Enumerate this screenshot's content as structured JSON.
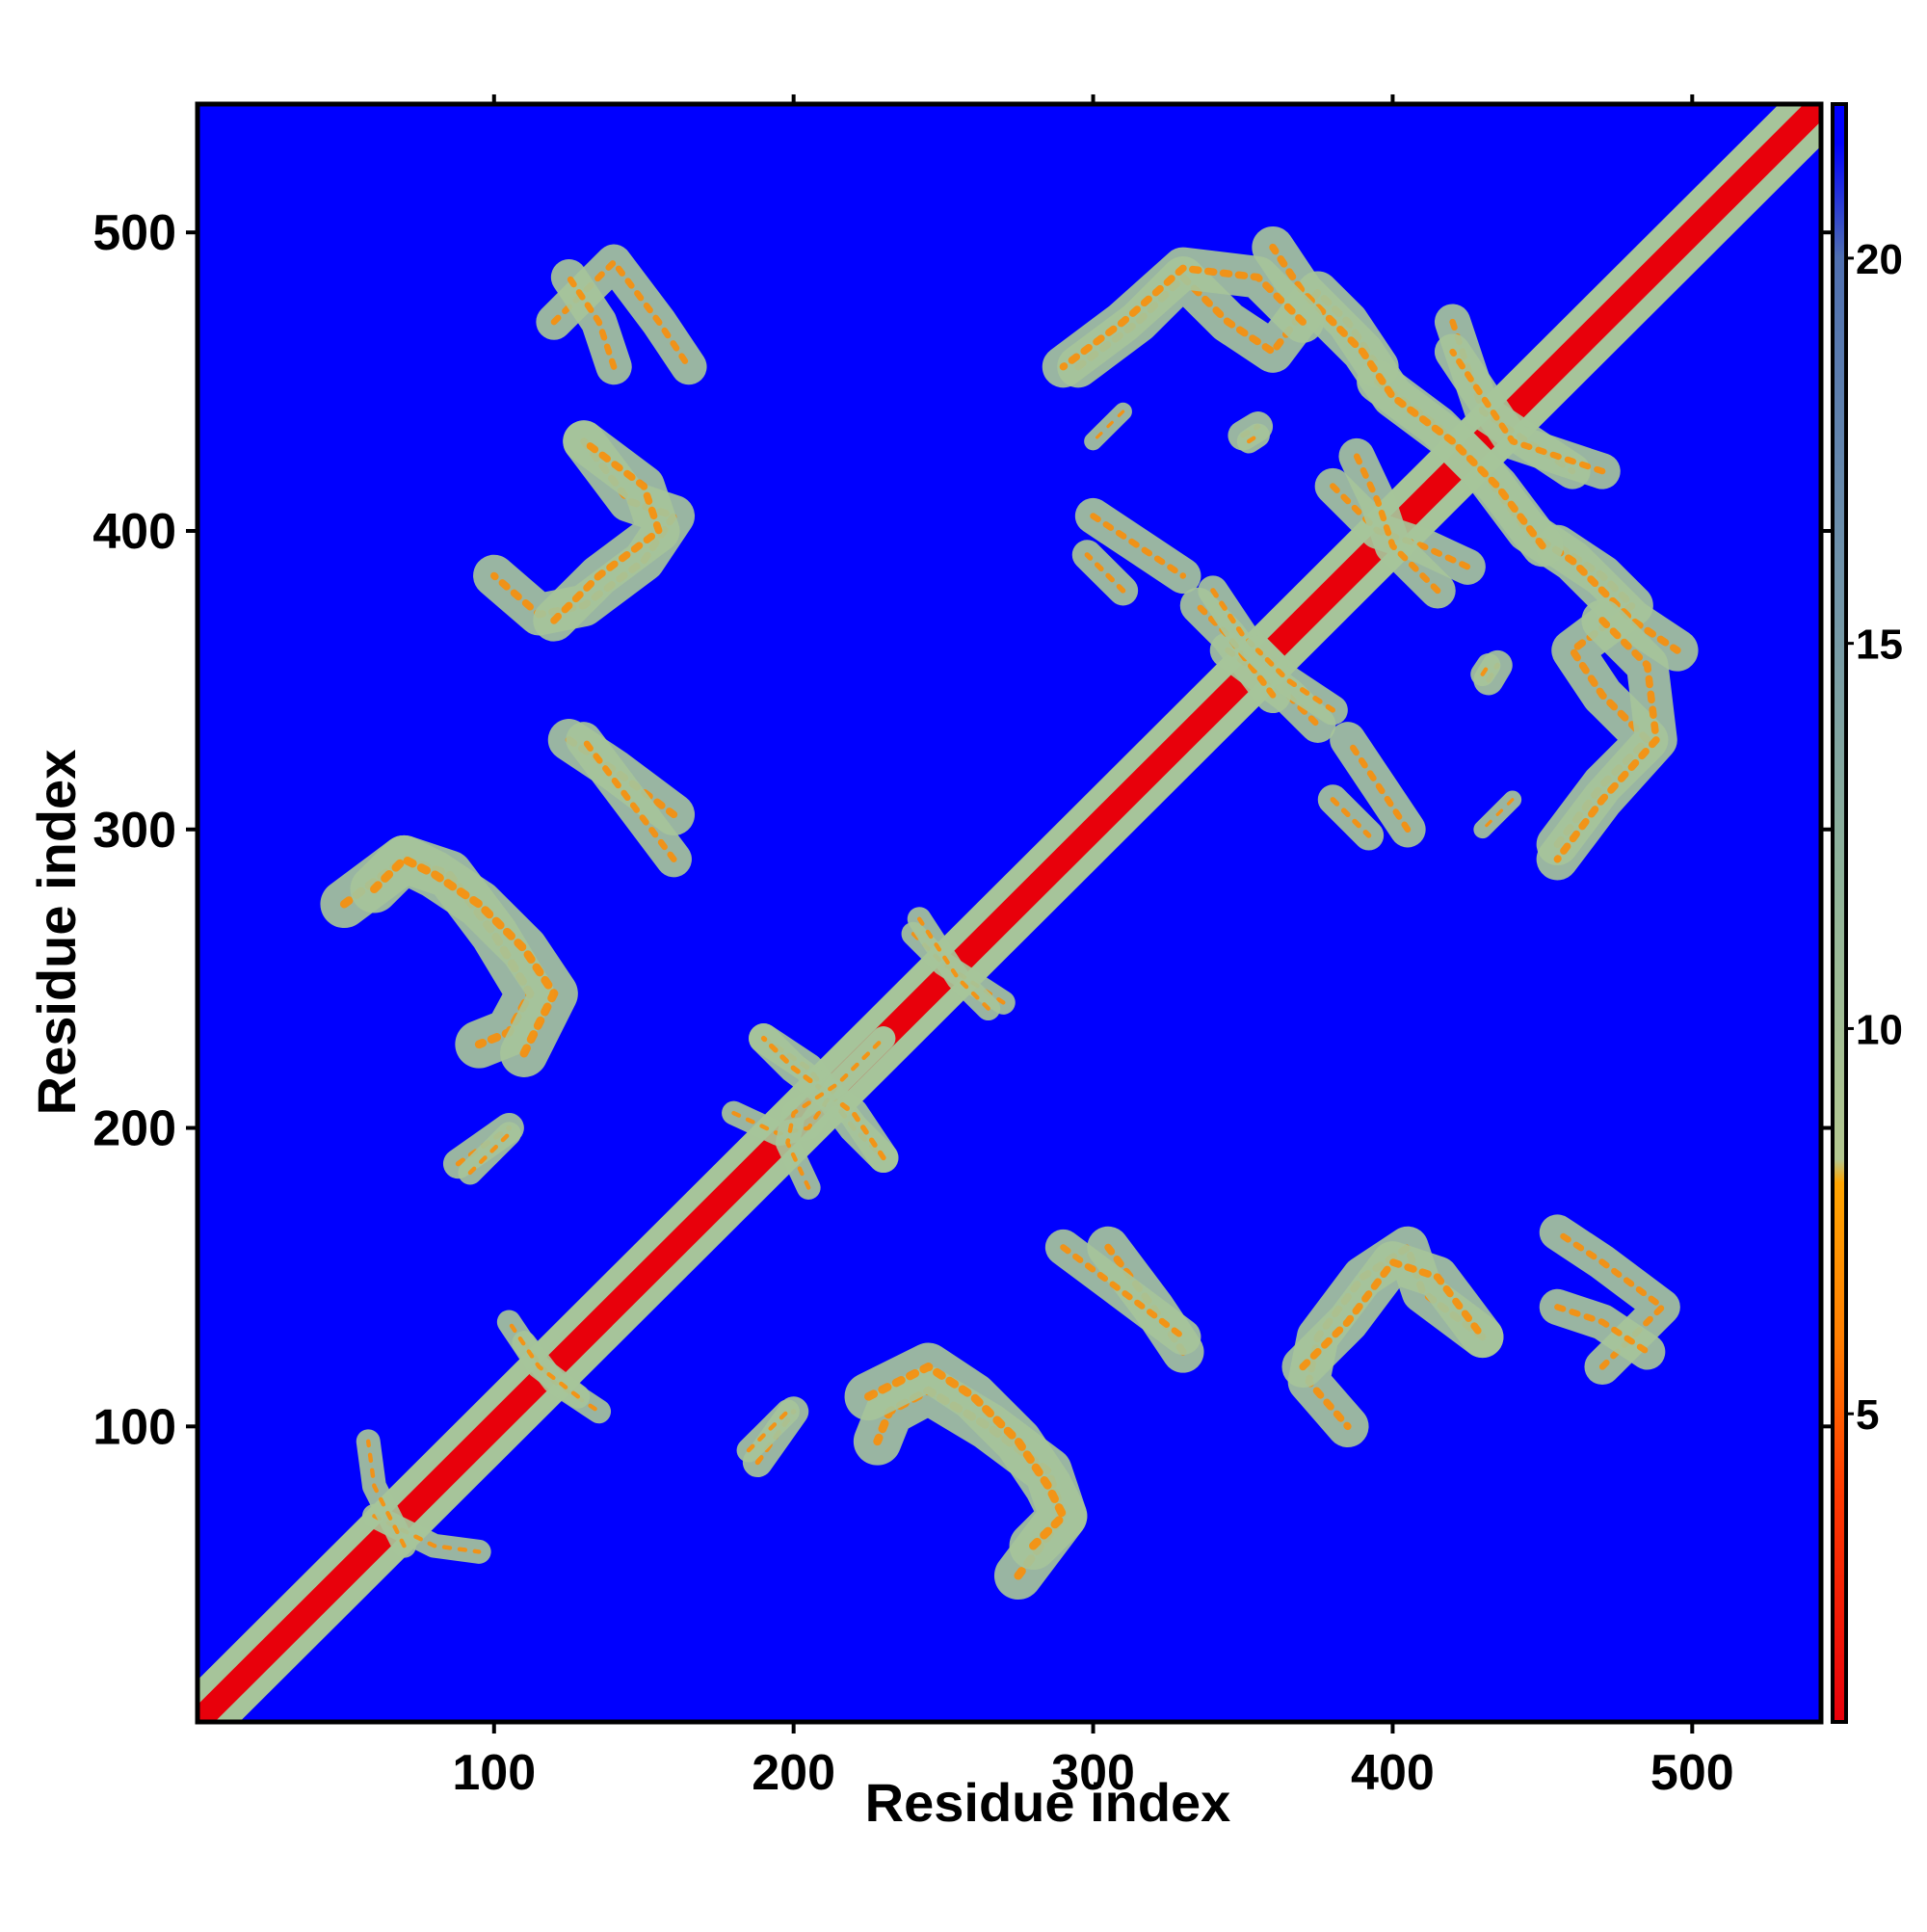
{
  "chart_data": {
    "type": "heatmap",
    "title": "",
    "xlabel": "Residue index",
    "ylabel": "Residue index",
    "xlim": [
      1,
      543
    ],
    "ylim": [
      1,
      543
    ],
    "x_ticks": [
      100,
      200,
      300,
      400,
      500
    ],
    "y_ticks": [
      100,
      200,
      300,
      400,
      500
    ],
    "x_tick_labels": [
      "100",
      "200",
      "300",
      "400",
      "500"
    ],
    "y_tick_labels": [
      "100",
      "200",
      "300",
      "400",
      "500"
    ],
    "colorbar": {
      "range": [
        1,
        22
      ],
      "ticks": [
        5,
        10,
        15,
        20
      ],
      "tick_labels": [
        "5",
        "10",
        "15",
        "20"
      ],
      "stops": [
        {
          "value": 1,
          "color": "#e8000b"
        },
        {
          "value": 4,
          "color": "#ff3a00"
        },
        {
          "value": 6,
          "color": "#ff7f00"
        },
        {
          "value": 8,
          "color": "#ffa500"
        },
        {
          "value": 8.3,
          "color": "#b4c890"
        },
        {
          "value": 12,
          "color": "#8fb39a"
        },
        {
          "value": 16,
          "color": "#6f92a9"
        },
        {
          "value": 20,
          "color": "#4f6fb0"
        },
        {
          "value": 21.5,
          "color": "#0000ff"
        }
      ]
    },
    "background_color": "#0000ff",
    "diagonal_color": "#e8000b",
    "contact_color": "#a6c49a",
    "core_color": "#ff8c00",
    "contact_segments": [
      {
        "path": [
          [
            2,
            2
          ],
          [
            543,
            543
          ]
        ],
        "width": 9
      },
      {
        "path": [
          [
            120,
            470
          ],
          [
            140,
            490
          ],
          [
            155,
            470
          ],
          [
            165,
            455
          ]
        ],
        "width": 6
      },
      {
        "path": [
          [
            130,
            430
          ],
          [
            145,
            410
          ],
          [
            160,
            405
          ],
          [
            150,
            390
          ],
          [
            130,
            375
          ],
          [
            115,
            372
          ],
          [
            100,
            385
          ]
        ],
        "width": 7
      },
      {
        "path": [
          [
            125,
            330
          ],
          [
            140,
            320
          ],
          [
            160,
            305
          ]
        ],
        "width": 7
      },
      {
        "path": [
          [
            50,
            275
          ],
          [
            70,
            290
          ],
          [
            85,
            285
          ],
          [
            100,
            265
          ],
          [
            112,
            245
          ],
          [
            105,
            232
          ],
          [
            95,
            228
          ]
        ],
        "width": 8
      },
      {
        "path": [
          [
            88,
            188
          ],
          [
            105,
            200
          ]
        ],
        "width": 5
      },
      {
        "path": [
          [
            190,
            230
          ],
          [
            205,
            220
          ],
          [
            220,
            200
          ],
          [
            230,
            190
          ]
        ],
        "width": 5
      },
      {
        "path": [
          [
            180,
            205
          ],
          [
            195,
            198
          ],
          [
            205,
            200
          ],
          [
            215,
            215
          ],
          [
            230,
            230
          ]
        ],
        "width": 4
      },
      {
        "path": [
          [
            185,
            92
          ],
          [
            198,
            105
          ]
        ],
        "width": 4
      },
      {
        "path": [
          [
            225,
            110
          ],
          [
            245,
            120
          ],
          [
            260,
            110
          ],
          [
            275,
            95
          ],
          [
            285,
            80
          ],
          [
            290,
            70
          ],
          [
            280,
            60
          ]
        ],
        "width": 8
      },
      {
        "path": [
          [
            290,
            160
          ],
          [
            310,
            145
          ],
          [
            330,
            130
          ]
        ],
        "width": 6
      },
      {
        "path": [
          [
            370,
            120
          ],
          [
            385,
            135
          ],
          [
            400,
            155
          ],
          [
            415,
            150
          ],
          [
            430,
            130
          ]
        ],
        "width": 7
      },
      {
        "path": [
          [
            455,
            140
          ],
          [
            470,
            135
          ],
          [
            485,
            125
          ]
        ],
        "width": 6
      },
      {
        "path": [
          [
            295,
            455
          ],
          [
            315,
            470
          ],
          [
            330,
            485
          ],
          [
            345,
            470
          ],
          [
            360,
            460
          ],
          [
            375,
            480
          ],
          [
            385,
            470
          ],
          [
            395,
            455
          ]
        ],
        "width": 7
      },
      {
        "path": [
          [
            300,
            405
          ],
          [
            315,
            395
          ],
          [
            330,
            385
          ]
        ],
        "width": 6
      },
      {
        "path": [
          [
            345,
            360
          ],
          [
            365,
            345
          ],
          [
            375,
            335
          ]
        ],
        "width": 6
      },
      {
        "path": [
          [
            340,
            380
          ],
          [
            350,
            365
          ],
          [
            360,
            355
          ]
        ],
        "width": 5
      },
      {
        "path": [
          [
            395,
            450
          ],
          [
            415,
            435
          ],
          [
            430,
            420
          ],
          [
            445,
            400
          ],
          [
            460,
            390
          ],
          [
            480,
            370
          ],
          [
            495,
            360
          ]
        ],
        "width": 7
      },
      {
        "path": [
          [
            420,
            470
          ],
          [
            430,
            440
          ],
          [
            445,
            430
          ],
          [
            460,
            420
          ]
        ],
        "width": 6
      },
      {
        "path": [
          [
            380,
            415
          ],
          [
            395,
            400
          ],
          [
            410,
            395
          ],
          [
            425,
            388
          ]
        ],
        "width": 6
      },
      {
        "path": [
          [
            470,
            370
          ],
          [
            485,
            355
          ],
          [
            488,
            330
          ],
          [
            470,
            310
          ],
          [
            455,
            290
          ]
        ],
        "width": 7
      },
      {
        "path": [
          [
            380,
            310
          ],
          [
            392,
            298
          ]
        ],
        "width": 5
      },
      {
        "path": [
          [
            432,
            350
          ],
          [
            435,
            355
          ]
        ],
        "width": 5
      },
      {
        "path": [
          [
            352,
            430
          ],
          [
            355,
            432
          ]
        ],
        "width": 4
      },
      {
        "path": [
          [
            440,
            310
          ],
          [
            430,
            300
          ]
        ],
        "width": 3
      },
      {
        "path": [
          [
            240,
            265
          ],
          [
            250,
            255
          ],
          [
            270,
            242
          ]
        ],
        "width": 4
      },
      {
        "path": [
          [
            60,
            70
          ],
          [
            80,
            60
          ],
          [
            95,
            58
          ]
        ],
        "width": 4
      },
      {
        "path": [
          [
            110,
            128
          ],
          [
            120,
            115
          ],
          [
            135,
            105
          ]
        ],
        "width": 4
      }
    ]
  }
}
